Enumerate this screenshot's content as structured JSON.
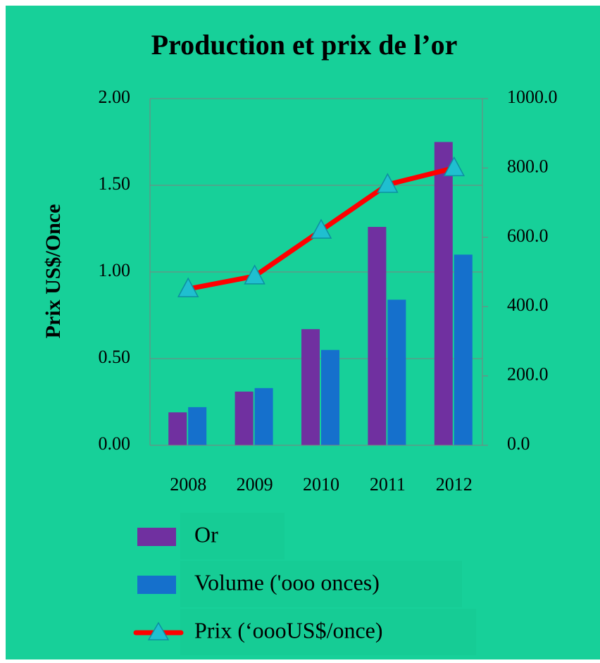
{
  "chart_data": {
    "type": "bar_line",
    "title": "Production et prix de l’or",
    "ylabel": "Prix US$/Once",
    "categories": [
      "2008",
      "2009",
      "2010",
      "2011",
      "2012"
    ],
    "series": [
      {
        "name": "Or",
        "color": "#7030a0",
        "kind": "bar",
        "axis": "y",
        "values": [
          0.19,
          0.31,
          0.67,
          1.26,
          1.75
        ]
      },
      {
        "name": "Volume ('ooo onces)",
        "color": "#1570cc",
        "kind": "bar",
        "axis": "y",
        "values": [
          0.22,
          0.33,
          0.55,
          0.84,
          1.1
        ]
      },
      {
        "name": "Prix (‘oooUS$/once)",
        "color": "#ff0000",
        "kind": "line",
        "axis": "y2",
        "values": [
          451,
          488,
          620,
          752,
          800
        ]
      }
    ],
    "ylim": [
      0,
      2
    ],
    "yticks": [
      {
        "value": 0,
        "label": "0.00"
      },
      {
        "value": 0.5,
        "label": "0.50"
      },
      {
        "value": 1,
        "label": "1.00"
      },
      {
        "value": 1.5,
        "label": "1.50"
      },
      {
        "value": 2,
        "label": "2.00"
      }
    ],
    "y2lim": [
      0,
      1000
    ],
    "y2ticks": [
      {
        "value": 0,
        "label": "0.0"
      },
      {
        "value": 200,
        "label": "200.0"
      },
      {
        "value": 400,
        "label": "400.0"
      },
      {
        "value": 600,
        "label": "600.0"
      },
      {
        "value": 800,
        "label": "800.0"
      },
      {
        "value": 1000,
        "label": "1000.0"
      }
    ],
    "grid": true,
    "legend": "bottom"
  }
}
